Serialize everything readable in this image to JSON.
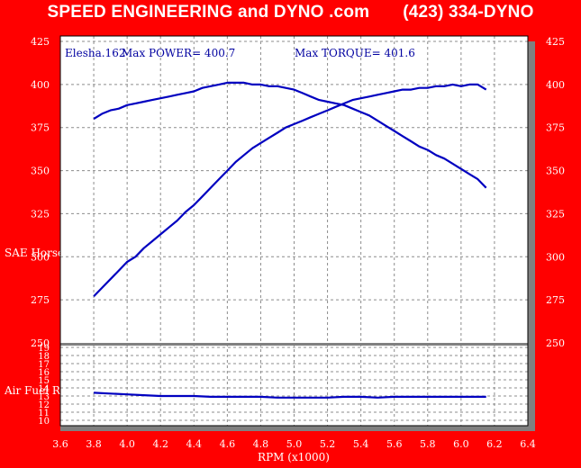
{
  "header": {
    "title": "SPEED ENGINEERING and DYNO .com",
    "phone": "(423) 334-DYNO"
  },
  "chart_data": [
    {
      "type": "line",
      "panel": "power-torque",
      "annotations": {
        "run": "Elesha.162",
        "max_power_text": "Max POWER= 400.7",
        "max_torque_text": "Max TORQUE= 401.6"
      },
      "ylabel": "SAE Horse",
      "xlabel": "RPM (x1000)",
      "xlim": [
        3.6,
        6.4
      ],
      "ylim": [
        250,
        425
      ],
      "x_ticks": [
        "3.6",
        "3.8",
        "4.0",
        "4.2",
        "4.4",
        "4.6",
        "4.8",
        "5.0",
        "5.2",
        "5.4",
        "5.6",
        "5.8",
        "6.0",
        "6.2",
        "6.4"
      ],
      "y_ticks": [
        "250",
        "275",
        "300",
        "325",
        "350",
        "375",
        "400",
        "425"
      ],
      "grid": true,
      "series": [
        {
          "color": "#0000c0",
          "x": [
            3.8,
            3.85,
            3.9,
            3.95,
            4.0,
            4.05,
            4.1,
            4.15,
            4.2,
            4.25,
            4.3,
            4.35,
            4.4,
            4.45,
            4.5,
            4.55,
            4.6,
            4.65,
            4.7,
            4.75,
            4.8,
            4.85,
            4.9,
            4.95,
            5.0,
            5.05,
            5.1,
            5.15,
            5.2,
            5.25,
            5.3,
            5.35,
            5.4,
            5.45,
            5.5,
            5.55,
            5.6,
            5.65,
            5.7,
            5.75,
            5.8,
            5.85,
            5.9,
            5.95,
            6.0,
            6.05,
            6.1,
            6.15
          ],
          "y": [
            277,
            282,
            287,
            292,
            297,
            300,
            305,
            309,
            313,
            317,
            321,
            326,
            330,
            335,
            340,
            345,
            350,
            355,
            359,
            363,
            366,
            369,
            372,
            375,
            377,
            379,
            381,
            383,
            385,
            387,
            389,
            391,
            392,
            393,
            394,
            395,
            396,
            397,
            397,
            398,
            398,
            399,
            399,
            400,
            399,
            400,
            400,
            397
          ]
        },
        {
          "color": "#0000c0",
          "x": [
            3.8,
            3.85,
            3.9,
            3.95,
            4.0,
            4.05,
            4.1,
            4.15,
            4.2,
            4.25,
            4.3,
            4.35,
            4.4,
            4.45,
            4.5,
            4.55,
            4.6,
            4.65,
            4.7,
            4.75,
            4.8,
            4.85,
            4.9,
            4.95,
            5.0,
            5.05,
            5.1,
            5.15,
            5.2,
            5.25,
            5.3,
            5.35,
            5.4,
            5.45,
            5.5,
            5.55,
            5.6,
            5.65,
            5.7,
            5.75,
            5.8,
            5.85,
            5.9,
            5.95,
            6.0,
            6.05,
            6.1,
            6.15
          ],
          "y": [
            380,
            383,
            385,
            386,
            388,
            389,
            390,
            391,
            392,
            393,
            394,
            395,
            396,
            398,
            399,
            400,
            401,
            401,
            401,
            400,
            400,
            399,
            399,
            398,
            397,
            395,
            393,
            391,
            390,
            389,
            388,
            386,
            384,
            382,
            379,
            376,
            373,
            370,
            367,
            364,
            362,
            359,
            357,
            354,
            351,
            348,
            345,
            340
          ]
        }
      ]
    },
    {
      "type": "line",
      "panel": "air-fuel",
      "ylabel": "Air Fuel Ra",
      "xlim": [
        3.6,
        6.4
      ],
      "ylim": [
        10,
        19
      ],
      "y_ticks": [
        "10",
        "11",
        "12",
        "13",
        "14",
        "15",
        "16",
        "17",
        "18",
        "19"
      ],
      "grid": true,
      "series": [
        {
          "color": "#0000c0",
          "x": [
            3.8,
            3.9,
            4.0,
            4.1,
            4.2,
            4.3,
            4.4,
            4.5,
            4.6,
            4.7,
            4.8,
            4.9,
            5.0,
            5.1,
            5.2,
            5.3,
            5.4,
            5.5,
            5.6,
            5.7,
            5.8,
            5.9,
            6.0,
            6.1,
            6.15
          ],
          "y": [
            13.4,
            13.3,
            13.2,
            13.1,
            13.0,
            13.0,
            13.0,
            12.9,
            12.9,
            12.9,
            12.9,
            12.8,
            12.8,
            12.8,
            12.8,
            12.9,
            12.9,
            12.8,
            12.9,
            12.9,
            12.9,
            12.9,
            12.9,
            12.9,
            12.9
          ]
        }
      ]
    }
  ]
}
